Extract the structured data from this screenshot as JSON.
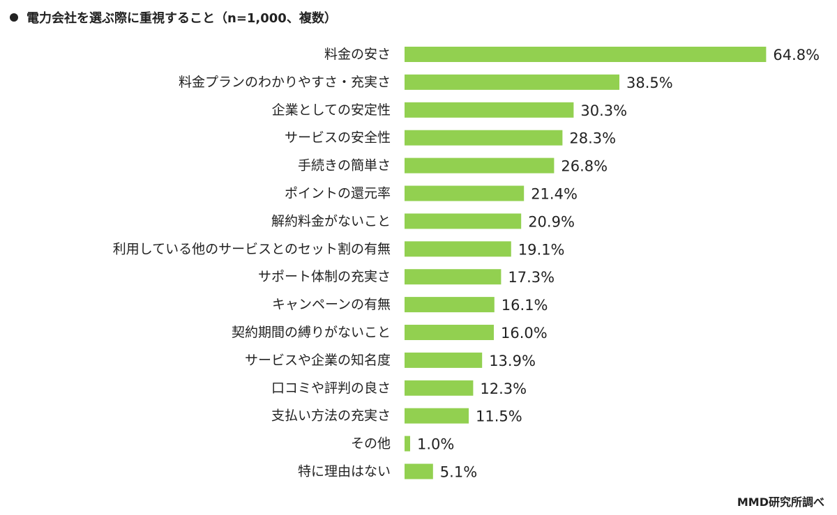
{
  "chart_data": {
    "type": "bar",
    "orientation": "horizontal",
    "title": "電力会社を選ぶ際に重視すること（n=1,000、複数）",
    "source": "MMD研究所調べ",
    "unit": "%",
    "bar_color": "#92d050",
    "categories": [
      "料金の安さ",
      "料金プランのわかりやすさ・充実さ",
      "企業としての安定性",
      "サービスの安全性",
      "手続きの簡単さ",
      "ポイントの還元率",
      "解約料金がないこと",
      "利用している他のサービスとのセット割の有無",
      "サポート体制の充実さ",
      "キャンペーンの有無",
      "契約期間の縛りがないこと",
      "サービスや企業の知名度",
      "口コミや評判の良さ",
      "支払い方法の充実さ",
      "その他",
      "特に理由はない"
    ],
    "values": [
      64.8,
      38.5,
      30.3,
      28.3,
      26.8,
      21.4,
      20.9,
      19.1,
      17.3,
      16.1,
      16.0,
      13.9,
      12.3,
      11.5,
      1.0,
      5.1
    ],
    "value_labels": [
      "64.8%",
      "38.5%",
      "30.3%",
      "28.3%",
      "26.8%",
      "21.4%",
      "20.9%",
      "19.1%",
      "17.3%",
      "16.1%",
      "16.0%",
      "13.9%",
      "12.3%",
      "11.5%",
      "1.0%",
      "5.1%"
    ]
  }
}
